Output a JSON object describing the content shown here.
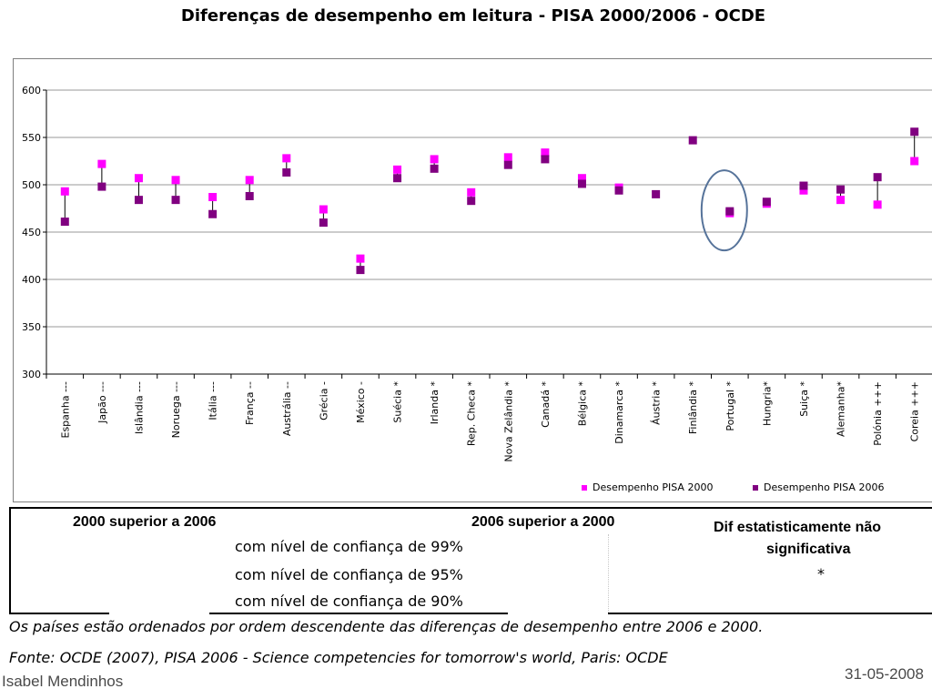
{
  "slide": {
    "title": "Diferenças de desempenho em leitura - PISA 2000/2006 - OCDE",
    "author": "Isabel Mendinhos",
    "date": "31-05-2008"
  },
  "chart_data": {
    "type": "scatter",
    "categories": [
      "Espanha ---",
      "Japão ---",
      "Islândia ---",
      "Noruega ---",
      "Itália ---",
      "França --",
      "Austrália --",
      "Grécia -",
      "México -",
      "Suécia *",
      "Irlanda *",
      "Rep. Checa *",
      "Nova Zelândia *",
      "Canadá *",
      "Bélgica *",
      "Dinamarca *",
      "Áustria *",
      "Finlândia *",
      "Portugal *",
      "Hungria*",
      "Suiça *",
      "Alemanha*",
      "Polónia +++",
      "Coreia +++"
    ],
    "series": [
      {
        "name": "Desempenho PISA 2000",
        "color": "#ff00ff",
        "values": [
          493,
          522,
          507,
          505,
          487,
          505,
          528,
          474,
          422,
          516,
          527,
          492,
          529,
          534,
          507,
          497,
          null,
          null,
          470,
          480,
          494,
          484,
          479,
          525
        ]
      },
      {
        "name": "Desempenho PISA 2006",
        "color": "#800080",
        "values": [
          461,
          498,
          484,
          484,
          469,
          488,
          513,
          460,
          410,
          507,
          517,
          483,
          521,
          527,
          501,
          494,
          490,
          547,
          472,
          482,
          499,
          495,
          508,
          556
        ]
      }
    ],
    "ylim": [
      300,
      600
    ],
    "yticks": [
      300,
      350,
      400,
      450,
      500,
      550,
      600
    ],
    "grid": true,
    "legend": "bottom-right",
    "annotation": "ellipse around Portugal *"
  },
  "legend_table": {
    "header_left": "2000 superior a 2006",
    "header_mid": "2006 superior a 2000",
    "header_right_1": "Dif estatisticamente não",
    "header_right_2": "significativa",
    "symbol": "*",
    "rows": [
      "com nível de confiança de 99%",
      "com nível de confiança de 95%",
      "com nível de confiança de 90%"
    ]
  },
  "notes": {
    "order": "Os países estão ordenados por ordem descendente das diferenças de desempenho entre 2006 e 2000.",
    "source": "Fonte: OCDE (2007), PISA 2006 - Science competencies for tomorrow's world, Paris: OCDE"
  }
}
